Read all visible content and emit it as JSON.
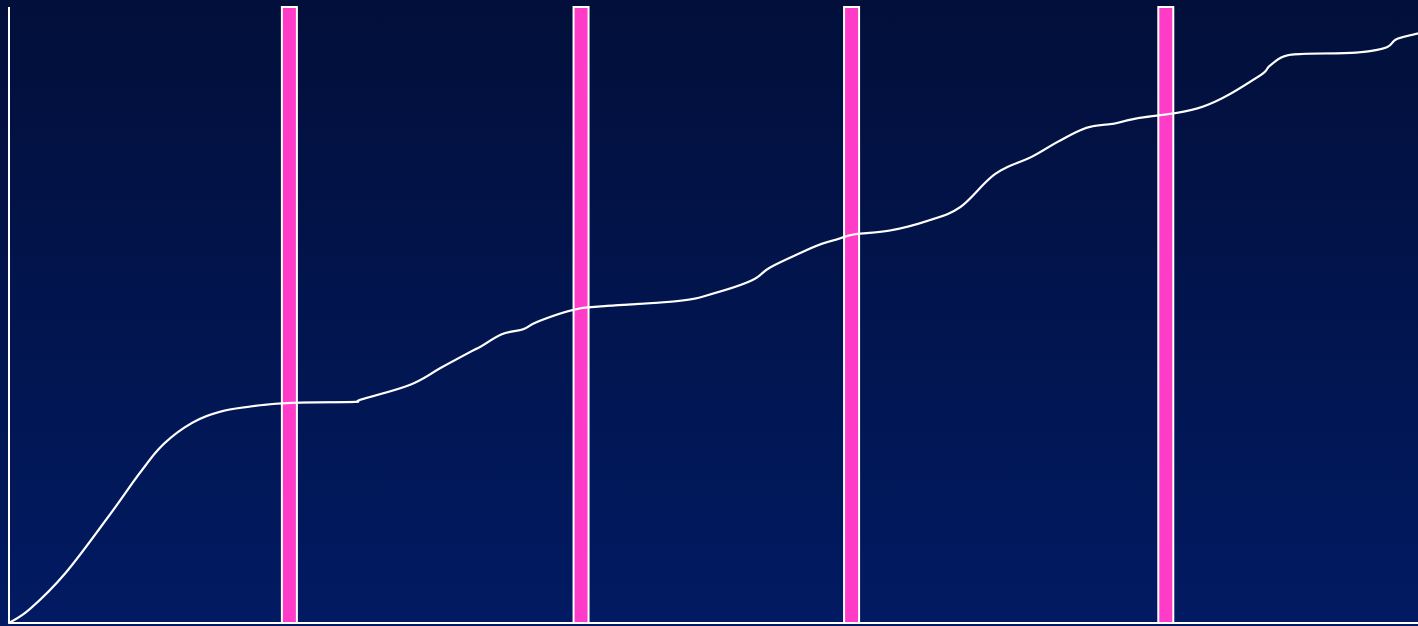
{
  "colors": {
    "background_top": "#020f3a",
    "background_bottom": "#011a62",
    "line": "#ffffff",
    "marker_fill": "#ff3cc8",
    "marker_stroke": "#ffffff",
    "axis": "#ffffff"
  },
  "chart_data": {
    "type": "line",
    "title": "",
    "xlabel": "",
    "ylabel": "",
    "grid": false,
    "legend": "none",
    "xlim": [
      0,
      100
    ],
    "ylim": [
      0,
      100
    ],
    "series": [
      {
        "values": [
          [
            0,
            0
          ],
          [
            1.5,
            2.3
          ],
          [
            4,
            8.1
          ],
          [
            7,
            17.1
          ],
          [
            9.3,
            24.4
          ],
          [
            11,
            29.1
          ],
          [
            13,
            32.5
          ],
          [
            15,
            34.3
          ],
          [
            17,
            35.1
          ],
          [
            19,
            35.6
          ],
          [
            21,
            35.8
          ],
          [
            24.5,
            35.9
          ],
          [
            25,
            36.3
          ],
          [
            28.5,
            38.7
          ],
          [
            30.7,
            41.5
          ],
          [
            32.9,
            44.2
          ],
          [
            33.5,
            44.9
          ],
          [
            35,
            46.9
          ],
          [
            36.5,
            47.7
          ],
          [
            37.5,
            48.9
          ],
          [
            40,
            50.8
          ],
          [
            42,
            51.4
          ],
          [
            47.6,
            52.3
          ],
          [
            50,
            53.5
          ],
          [
            52.7,
            55.6
          ],
          [
            54,
            57.7
          ],
          [
            56.1,
            60.0
          ],
          [
            57.5,
            61.4
          ],
          [
            58.8,
            62.3
          ],
          [
            60,
            63.1
          ],
          [
            62.5,
            63.7
          ],
          [
            65.2,
            65.3
          ],
          [
            67.5,
            67.5
          ],
          [
            70,
            72.9
          ],
          [
            72.6,
            75.7
          ],
          [
            74.5,
            78.2
          ],
          [
            76.5,
            80.4
          ],
          [
            78.5,
            81.1
          ],
          [
            80,
            81.9
          ],
          [
            84.7,
            83.8
          ],
          [
            88.6,
            88.6
          ],
          [
            89.5,
            90.5
          ],
          [
            90.5,
            92.0
          ],
          [
            92,
            92.4
          ],
          [
            95.6,
            92.6
          ],
          [
            97.7,
            93.4
          ],
          [
            98.5,
            94.8
          ],
          [
            100,
            95.7
          ]
        ]
      }
    ],
    "markers": [
      {
        "x": 19.9
      },
      {
        "x": 40.6
      },
      {
        "x": 59.8
      },
      {
        "x": 82.1
      }
    ]
  }
}
